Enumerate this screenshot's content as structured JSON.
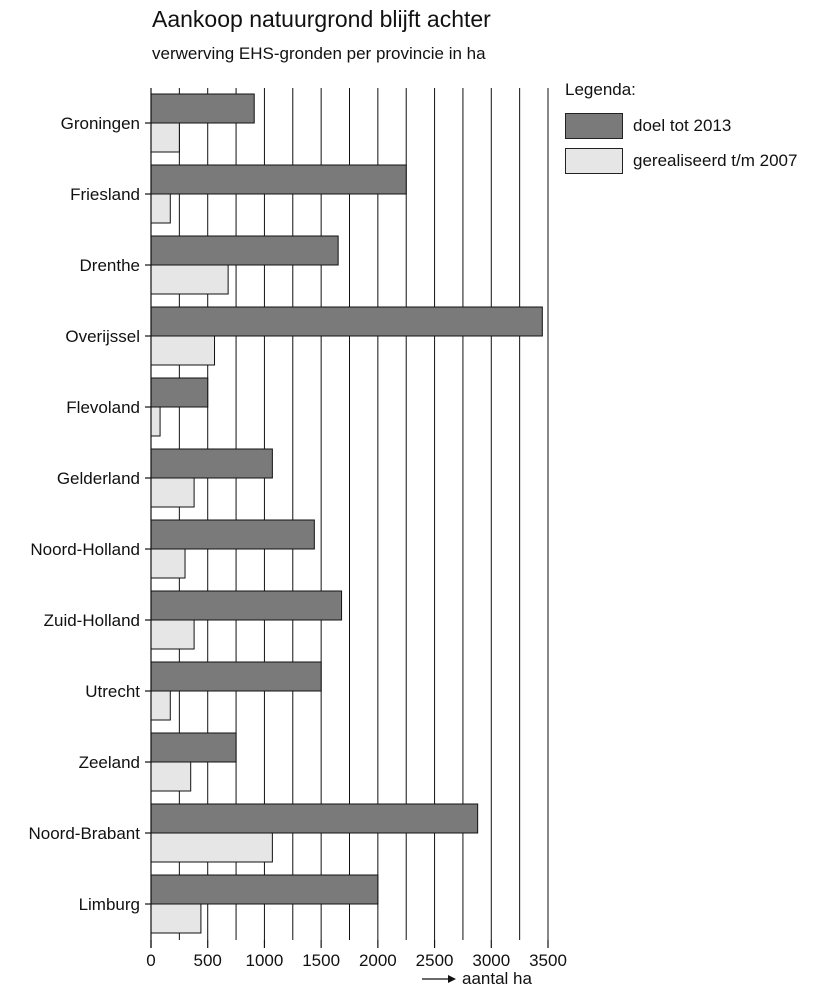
{
  "title": "Aankoop natuurgrond blijft achter",
  "subtitle": "verwerving EHS-gronden per provincie in ha",
  "legend": {
    "title": "Legenda:",
    "items": [
      {
        "label": "doel tot 2013",
        "color": "#7a7a7a"
      },
      {
        "label": "gerealiseerd t/m 2007",
        "color": "#e6e6e6"
      }
    ]
  },
  "x_axis_caption": "aantal ha",
  "chart_data": {
    "type": "bar",
    "orientation": "horizontal",
    "title": "Aankoop natuurgrond blijft achter",
    "subtitle": "verwerving EHS-gronden per provincie in ha",
    "xlabel": "aantal ha",
    "ylabel": "",
    "xlim": [
      0,
      3500
    ],
    "xticks": [
      0,
      500,
      1000,
      1500,
      2000,
      2500,
      3000,
      3500
    ],
    "grid": "vertical lines every 250",
    "legend_position": "top-right",
    "categories": [
      "Groningen",
      "Friesland",
      "Drenthe",
      "Overijssel",
      "Flevoland",
      "Gelderland",
      "Noord-Holland",
      "Zuid-Holland",
      "Utrecht",
      "Zeeland",
      "Noord-Brabant",
      "Limburg"
    ],
    "series": [
      {
        "name": "doel tot 2013",
        "color": "#7a7a7a",
        "values": [
          910,
          2250,
          1650,
          3450,
          500,
          1070,
          1440,
          1680,
          1500,
          750,
          2880,
          2000
        ]
      },
      {
        "name": "gerealiseerd t/m 2007",
        "color": "#e6e6e6",
        "values": [
          250,
          170,
          680,
          560,
          80,
          380,
          300,
          380,
          170,
          350,
          1070,
          440
        ]
      }
    ]
  }
}
